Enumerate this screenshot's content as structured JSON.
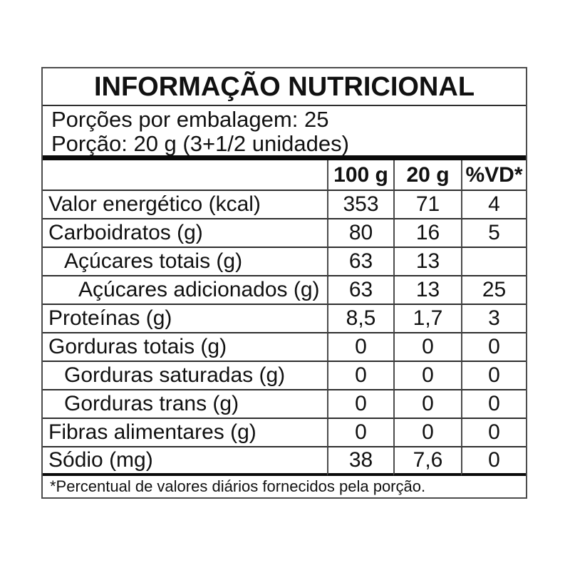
{
  "label": {
    "title": "INFORMAÇÃO NUTRICIONAL",
    "servings_per_package": "Porções por embalagem: 25",
    "serving_size": "Porção: 20 g (3+1/2 unidades)",
    "footnote": "*Percentual de valores diários fornecidos pela porção."
  },
  "table": {
    "columns": [
      "100 g",
      "20 g",
      "%VD*"
    ],
    "rows": [
      {
        "name": "Valor energético (kcal)",
        "indent": 0,
        "values": [
          "353",
          "71",
          "4"
        ]
      },
      {
        "name": "Carboidratos (g)",
        "indent": 0,
        "values": [
          "80",
          "16",
          "5"
        ]
      },
      {
        "name": "Açúcares totais (g)",
        "indent": 1,
        "values": [
          "63",
          "13",
          ""
        ]
      },
      {
        "name": "Açúcares adicionados (g)",
        "indent": 2,
        "values": [
          "63",
          "13",
          "25"
        ]
      },
      {
        "name": "Proteínas (g)",
        "indent": 0,
        "values": [
          "8,5",
          "1,7",
          "3"
        ]
      },
      {
        "name": "Gorduras totais (g)",
        "indent": 0,
        "values": [
          "0",
          "0",
          "0"
        ]
      },
      {
        "name": "Gorduras saturadas (g)",
        "indent": 1,
        "values": [
          "0",
          "0",
          "0"
        ]
      },
      {
        "name": "Gorduras trans (g)",
        "indent": 1,
        "values": [
          "0",
          "0",
          "0"
        ]
      },
      {
        "name": "Fibras alimentares (g)",
        "indent": 0,
        "values": [
          "0",
          "0",
          "0"
        ]
      },
      {
        "name": "Sódio (mg)",
        "indent": 0,
        "values": [
          "38",
          "7,6",
          "0"
        ]
      }
    ]
  },
  "colors": {
    "background": "#ffffff",
    "text": "#111111",
    "border": "#4c4c4c",
    "line_thin": "#2e2e2e",
    "line_thick": "#0a0a0a"
  }
}
